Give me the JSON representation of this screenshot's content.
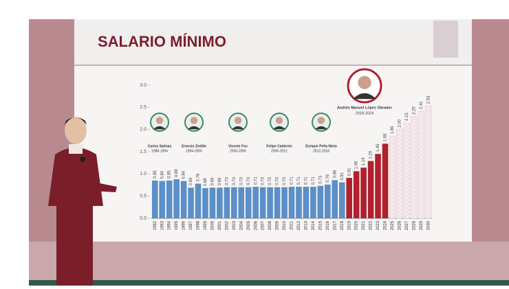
{
  "chart_data": {
    "type": "bar",
    "title": "SALARIO MÍNIMO",
    "categories": [
      "1992",
      "1993",
      "1994",
      "1995",
      "1996",
      "1997",
      "1998",
      "1999",
      "2000",
      "2001",
      "2002",
      "2003",
      "2004",
      "2005",
      "2006",
      "2007",
      "2008",
      "2009",
      "2010",
      "2011",
      "2012",
      "2013",
      "2014",
      "2015",
      "2016",
      "2017",
      "2018",
      "2019",
      "2020",
      "2021",
      "2022",
      "2023",
      "2024",
      "2025",
      "2026",
      "2027",
      "2028",
      "2029",
      "2030"
    ],
    "values": [
      0.85,
      0.84,
      0.85,
      0.88,
      0.84,
      0.69,
      0.78,
      0.68,
      0.69,
      0.69,
      0.7,
      0.7,
      0.7,
      0.7,
      0.71,
      0.7,
      0.7,
      0.7,
      0.7,
      0.71,
      0.71,
      0.71,
      0.71,
      0.73,
      0.76,
      0.86,
      0.81,
      0.91,
      1.06,
      1.14,
      1.29,
      1.45,
      1.68,
      1.85,
      2.0,
      2.15,
      2.29,
      2.41,
      2.53
    ],
    "value_labels": [
      "0.85",
      "0.84",
      "0.85",
      "0.88",
      "0.84",
      "0.69",
      "0.78",
      "0.68",
      "0.69",
      "0.69",
      "0.70",
      "0.70",
      "0.70",
      "0.70",
      "0.71",
      "0.70",
      "0.70",
      "0.70",
      "0.70",
      "0.71",
      "0.71",
      "0.71",
      "0.71",
      "0.73",
      "0.76",
      "0.86",
      "0.81",
      "0.91",
      "1.06",
      "1.14",
      "1.29",
      "1.45",
      "1.68",
      "1.85",
      "2.00",
      "2.15",
      "2.29",
      "2.41",
      "2.53"
    ],
    "colors": [
      "#5b8fc7",
      "#5b8fc7",
      "#5b8fc7",
      "#5b8fc7",
      "#5b8fc7",
      "#5b8fc7",
      "#5b8fc7",
      "#5b8fc7",
      "#5b8fc7",
      "#5b8fc7",
      "#5b8fc7",
      "#5b8fc7",
      "#5b8fc7",
      "#5b8fc7",
      "#5b8fc7",
      "#5b8fc7",
      "#5b8fc7",
      "#5b8fc7",
      "#5b8fc7",
      "#5b8fc7",
      "#5b8fc7",
      "#5b8fc7",
      "#5b8fc7",
      "#5b8fc7",
      "#5b8fc7",
      "#5b8fc7",
      "#5b8fc7",
      "#b0202e",
      "#b0202e",
      "#b0202e",
      "#b0202e",
      "#b0202e",
      "#b0202e",
      "#f6eef0",
      "#f6eef0",
      "#f6eef0",
      "#f6eef0",
      "#f6eef0",
      "#f6eef0"
    ],
    "ylim": [
      0,
      3
    ],
    "yticks": [
      {
        "value": 0,
        "label": "0.0"
      },
      0.5,
      {
        "value": 1,
        "label": "1.0"
      },
      1.5,
      {
        "value": 2,
        "label": "2.0"
      },
      2.5,
      {
        "value": 3,
        "label": "3.0"
      }
    ],
    "annotations": [
      {
        "name": "Carlos Salinas",
        "years": "1988-1994"
      },
      {
        "name": "Ernesto Zedillo",
        "years": "1994-2000"
      },
      {
        "name": "Vicente Fox",
        "years": "2000-2006"
      },
      {
        "name": "Felipe Calderón",
        "years": "2006-2012"
      },
      {
        "name": "Enrique Peña Nieto",
        "years": "2012-2018"
      },
      {
        "name": "Andrés Manuel López Obrador",
        "years": "2018-2024"
      }
    ]
  }
}
